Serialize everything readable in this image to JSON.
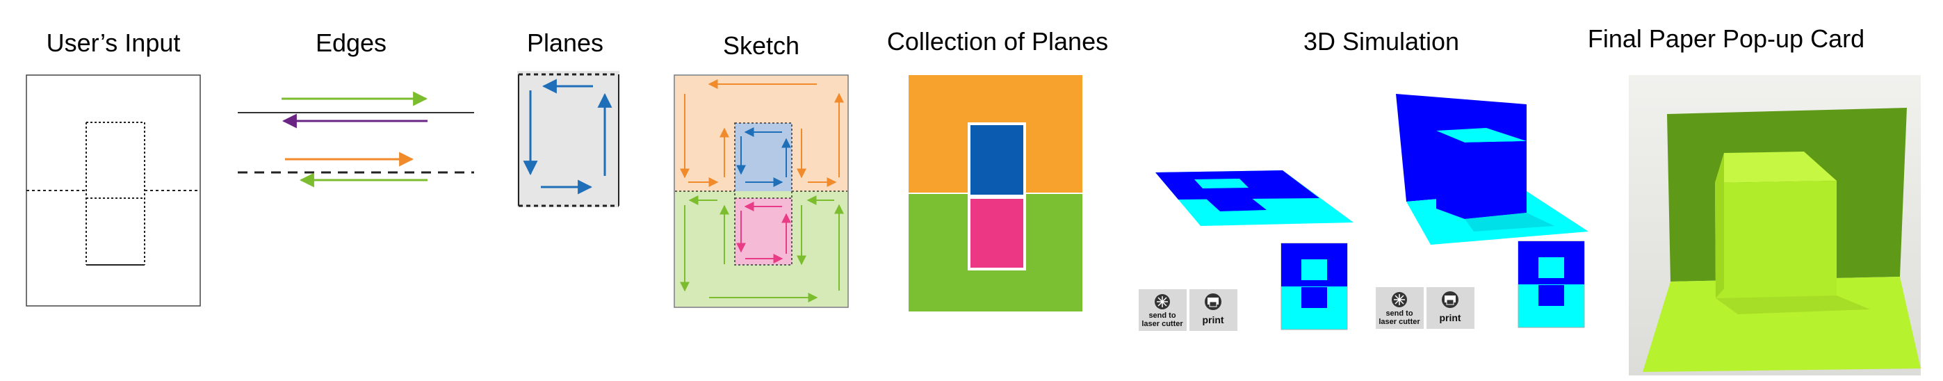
{
  "titles": {
    "input": "User’s Input",
    "edges": "Edges",
    "planes": "Planes",
    "sketch": "Sketch",
    "collection": "Collection of Planes",
    "simulation": "3D Simulation",
    "final": "Final Paper Pop-up Card"
  },
  "buttons": {
    "laser_line1": "send to",
    "laser_line2": "laser cutter",
    "print": "print"
  },
  "colors": {
    "green": "#7cbd2f",
    "purple": "#6a2484",
    "orange": "#f08a2a",
    "blue": "#1f6fb8",
    "pink": "#e83d86",
    "collection_orange": "#f6a22d",
    "collection_blue": "#0b5bb0",
    "collection_pink": "#ec3784",
    "collection_green": "#7bbf33",
    "sim_blue": "#0000ff",
    "sim_cyan": "#00ffff",
    "card_back": "#5e9a17",
    "card_front": "#b7f22e"
  }
}
